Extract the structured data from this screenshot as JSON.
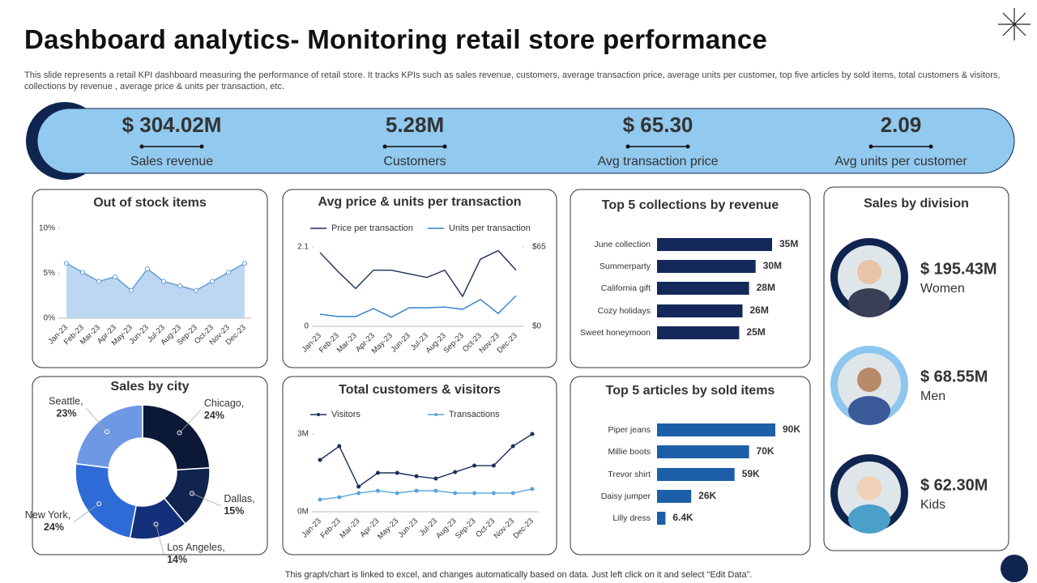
{
  "header": {
    "title": "Dashboard analytics- Monitoring retail store performance",
    "description": "This slide represents a retail KPI dashboard measuring the performance of retail store. It tracks KPIs such as sales revenue, customers, average transaction price, average units per customer, top five articles by sold items, total customers & visitors, collections by revenue , average price & units per transaction, etc."
  },
  "kpis": [
    {
      "value": "$ 304.02M",
      "label": "Sales revenue"
    },
    {
      "value": "5.28M",
      "label": "Customers"
    },
    {
      "value": "$ 65.30",
      "label": "Avg transaction price"
    },
    {
      "value": "2.09",
      "label": "Avg units per customer"
    }
  ],
  "chart_data": [
    {
      "type": "area",
      "title": "Out of stock items",
      "categories": [
        "Jan-23",
        "Feb-23",
        "Mar-23",
        "Apr-23",
        "May-23",
        "Jun-23",
        "Jul-23",
        "Aug-23",
        "Sep-23",
        "Oct-23",
        "Nov-23",
        "Dec-23"
      ],
      "values": [
        6.1,
        5.1,
        4.1,
        4.6,
        3.1,
        5.5,
        4.1,
        3.6,
        3.1,
        4.1,
        5.1,
        6.1
      ],
      "color": "#5b9bd5",
      "ylim": [
        0,
        10
      ],
      "yticks": [
        {
          "value": 0,
          "label": "0%"
        },
        {
          "value": 5,
          "label": "5%"
        },
        {
          "value": 10,
          "label": "10%"
        }
      ],
      "grid": false
    },
    {
      "type": "line",
      "title": "Avg price & units per transaction",
      "categories": [
        "Jan-23",
        "Feb-23",
        "Mar-23",
        "Apr-23",
        "May-23",
        "Jun-23",
        "Jul-23",
        "Aug-23",
        "Sep-23",
        "Oct-23",
        "Nov-23",
        "Dec-23"
      ],
      "series": [
        {
          "name": "Price per transaction",
          "color": "#1b2f5c",
          "axis": "y2",
          "values": [
            60.4,
            45,
            31,
            46,
            46,
            43,
            40,
            46,
            24.5,
            55,
            62,
            46
          ]
        },
        {
          "name": "Units per transaction",
          "color": "#2f7fd0",
          "values": [
            0.32,
            0.26,
            0.26,
            0.47,
            0.24,
            0.49,
            0.49,
            0.51,
            0.45,
            0.71,
            0.34,
            0.81
          ]
        }
      ],
      "ylim": [
        0,
        2.1
      ],
      "yticks": [
        0,
        2.1
      ],
      "y2lim": [
        0,
        65
      ],
      "y2ticks": [
        {
          "value": 0,
          "label": "$0"
        },
        {
          "value": 65,
          "label": "$65"
        }
      ],
      "grid": false,
      "legend": "top"
    },
    {
      "type": "hbar",
      "title": "Top 5 collections by revenue",
      "categories": [
        "June collection",
        "Summerparty",
        "California gift",
        "Cozy holidays",
        "Sweet honeymoon"
      ],
      "values": [
        35,
        30,
        28,
        26,
        25
      ],
      "value_labels": [
        "35M",
        "30M",
        "28M",
        "26M",
        "25M"
      ],
      "color": "#14295a"
    },
    {
      "type": "donut",
      "title": "Sales by city",
      "categories": [
        "Chicago,",
        "Dallas,",
        "Los Angeles,",
        "New York,",
        "Seattle,"
      ],
      "values": [
        24,
        15,
        14,
        24,
        23
      ],
      "value_labels": [
        "24%",
        "15%",
        "14%",
        "24%",
        "23%"
      ],
      "colors": [
        "#0b1836",
        "#10244f",
        "#15307a",
        "#2e6bd6",
        "#6f98e4"
      ]
    },
    {
      "type": "line",
      "title": "Total customers & visitors",
      "categories": [
        "Jan-23",
        "Feb-23",
        "Mar-23",
        "Apr-23",
        "May-23",
        "Jun-23",
        "Jul-23",
        "Aug-23",
        "Sep-23",
        "Oct-23",
        "Nov-23",
        "Dec-23"
      ],
      "series": [
        {
          "name": "Visitors",
          "color": "#1b2f5c",
          "values": [
            2.0,
            2.53,
            0.97,
            1.5,
            1.5,
            1.37,
            1.28,
            1.53,
            1.78,
            1.78,
            2.53,
            3.0
          ]
        },
        {
          "name": "Transactions",
          "color": "#5ba3dc",
          "values": [
            0.47,
            0.56,
            0.72,
            0.81,
            0.72,
            0.81,
            0.81,
            0.72,
            0.72,
            0.72,
            0.72,
            0.88
          ]
        }
      ],
      "ylim": [
        0,
        3
      ],
      "yticks": [
        {
          "value": 0,
          "label": "0M"
        },
        {
          "value": 3,
          "label": "3M"
        }
      ],
      "grid": false,
      "legend": "top",
      "markers": true
    },
    {
      "type": "hbar",
      "title": "Top 5 articles by sold items",
      "categories": [
        "Piper jeans",
        "Millie boots",
        "Trevor shirt",
        "Daisy jumper",
        "Lilly dress"
      ],
      "values": [
        90,
        70,
        59,
        26,
        6.4
      ],
      "value_labels": [
        "90K",
        "70K",
        "59K",
        "26K",
        "6.4K"
      ],
      "color": "#1d5ea8"
    }
  ],
  "division": {
    "title": "Sales by division",
    "items": [
      {
        "value": "$ 195.43M",
        "label": "Women"
      },
      {
        "value": "$ 68.55M",
        "label": "Men"
      },
      {
        "value": "$ 62.30M",
        "label": "Kids"
      }
    ]
  },
  "footer": "This graph/chart is linked to excel, and changes automatically based on data. Just left click on it and select “Edit Data”."
}
